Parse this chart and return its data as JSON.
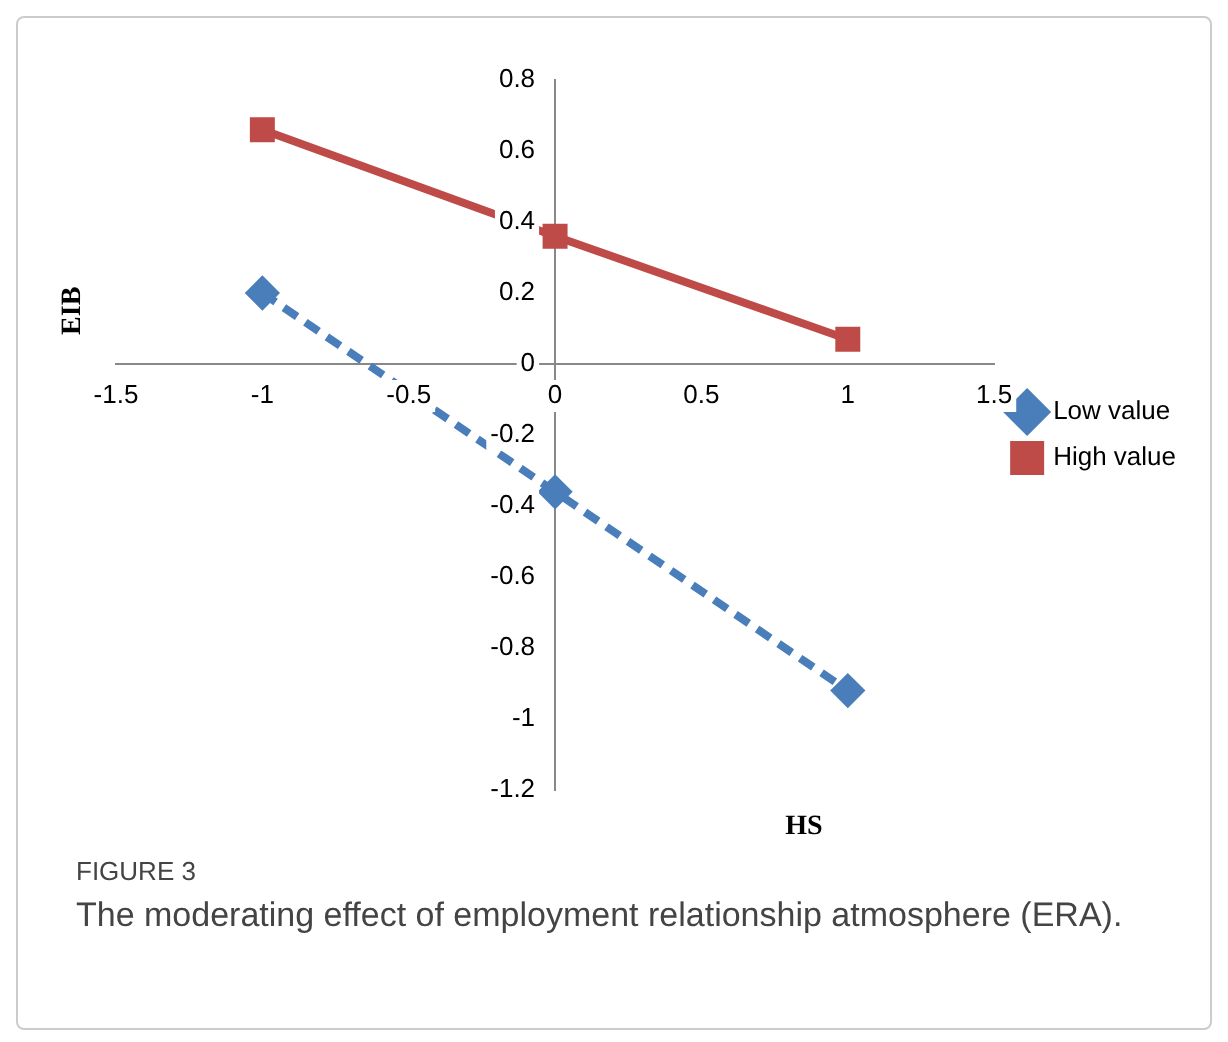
{
  "chart_data": {
    "type": "line",
    "xlabel": "HS",
    "ylabel": "EIB",
    "x": [
      -1,
      0,
      1
    ],
    "series": [
      {
        "name": "Low value",
        "color": "#4a7ebb",
        "values": [
          0.2,
          -0.36,
          -0.92
        ],
        "marker": "diamond",
        "line_style": "dashed"
      },
      {
        "name": "High value",
        "color": "#be4b48",
        "values": [
          0.66,
          0.36,
          0.07
        ],
        "marker": "square",
        "line_style": "solid"
      }
    ],
    "xlim": [
      -1.5,
      1.5
    ],
    "xticks": [
      -1.5,
      {
        "value": -1,
        "label": "-1"
      },
      -0.5,
      0,
      0.5,
      {
        "value": 1,
        "label": "1"
      },
      1.5
    ],
    "ylim": [
      -1.2,
      0.8
    ],
    "yticks": [
      -1.2,
      {
        "value": -1,
        "label": "-1"
      },
      -0.8,
      -0.6,
      -0.4,
      -0.2,
      0,
      0.2,
      0.4,
      0.6,
      0.8
    ],
    "grid": false,
    "legend": "right",
    "annotations": [
      "FIGURE 3",
      "The moderating effect of employment relationship atmosphere (ERA)."
    ]
  }
}
